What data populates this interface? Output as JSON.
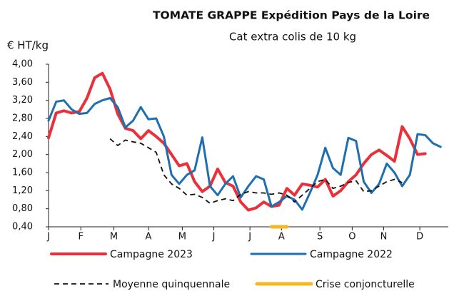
{
  "chart_data": {
    "type": "line",
    "title": "TOMATE  GRAPPE Expédition Pays de la Loire",
    "subtitle": "Cat extra colis de 10 kg",
    "y_label": "€ HT/kg",
    "x": [
      1,
      2,
      3,
      4,
      5,
      6,
      7,
      8,
      9,
      10,
      11,
      12,
      13,
      14,
      15,
      16,
      17,
      18,
      19,
      20,
      21,
      22,
      23,
      24,
      25,
      26,
      27,
      28,
      29,
      30,
      31,
      32,
      33,
      34,
      35,
      36,
      37,
      38,
      39,
      40,
      41,
      42,
      43,
      44,
      45,
      46,
      47,
      48,
      49,
      50,
      51,
      52
    ],
    "xlim": [
      1,
      53
    ],
    "xticks": [
      {
        "value": 1,
        "label": "J"
      },
      {
        "value": 5.2,
        "label": "F"
      },
      {
        "value": 9.5,
        "label": "M"
      },
      {
        "value": 14,
        "label": "A"
      },
      {
        "value": 18.4,
        "label": "M"
      },
      {
        "value": 22.5,
        "label": "J"
      },
      {
        "value": 27.2,
        "label": "J"
      },
      {
        "value": 31.3,
        "label": "A"
      },
      {
        "value": 36.3,
        "label": "S"
      },
      {
        "value": 40.5,
        "label": "O"
      },
      {
        "value": 44.6,
        "label": "N"
      },
      {
        "value": 49.3,
        "label": "D"
      }
    ],
    "ylim": [
      0.4,
      4.0
    ],
    "yticks": [
      {
        "value": 0.4,
        "label": "0,40"
      },
      {
        "value": 0.8,
        "label": "0,80"
      },
      {
        "value": 1.2,
        "label": "1,20"
      },
      {
        "value": 1.6,
        "label": "1,60"
      },
      {
        "value": 2.0,
        "label": "2,00"
      },
      {
        "value": 2.4,
        "label": "2,40"
      },
      {
        "value": 2.8,
        "label": "2,80"
      },
      {
        "value": 3.2,
        "label": "3,20"
      },
      {
        "value": 3.6,
        "label": "3,60"
      },
      {
        "value": 4.0,
        "label": "4,00"
      }
    ],
    "grid": false,
    "series": [
      {
        "name": "Campagne 2023",
        "color": "#e8313a",
        "width": 4,
        "dashed": false,
        "values": [
          2.37,
          2.92,
          2.97,
          2.92,
          2.95,
          3.25,
          3.7,
          3.8,
          3.45,
          2.9,
          2.58,
          2.53,
          2.35,
          2.53,
          2.4,
          2.25,
          2.0,
          1.75,
          1.8,
          1.4,
          1.18,
          1.3,
          1.68,
          1.38,
          1.3,
          0.95,
          0.77,
          0.82,
          0.95,
          0.85,
          0.88,
          1.25,
          1.1,
          1.35,
          1.32,
          1.28,
          1.45,
          1.08,
          1.2,
          1.4,
          1.55,
          1.8,
          2.0,
          2.1,
          1.98,
          1.85,
          2.62,
          2.35,
          2.0,
          2.02,
          null,
          null
        ]
      },
      {
        "name": "Campagne 2022",
        "color": "#1f6fb0",
        "width": 3,
        "dashed": false,
        "values": [
          2.75,
          3.17,
          3.2,
          3.0,
          2.9,
          2.92,
          3.12,
          3.2,
          3.25,
          3.05,
          2.6,
          2.75,
          3.05,
          2.78,
          2.8,
          2.4,
          1.55,
          1.35,
          1.55,
          1.65,
          2.38,
          1.3,
          1.1,
          1.35,
          1.52,
          1.05,
          1.3,
          1.52,
          1.45,
          0.85,
          0.95,
          1.08,
          1.0,
          0.78,
          1.15,
          1.55,
          2.15,
          1.7,
          1.55,
          2.37,
          2.3,
          1.4,
          1.15,
          1.35,
          1.8,
          1.6,
          1.3,
          1.55,
          2.45,
          2.43,
          2.25,
          2.17
        ]
      },
      {
        "name": "Moyenne quinquennale",
        "color": "#111111",
        "width": 1.8,
        "dashed": true,
        "values": [
          null,
          null,
          null,
          null,
          null,
          null,
          null,
          null,
          2.35,
          2.2,
          2.32,
          2.28,
          2.25,
          2.15,
          2.05,
          1.55,
          1.35,
          1.25,
          1.1,
          1.12,
          1.05,
          0.92,
          0.98,
          1.02,
          0.98,
          1.12,
          1.18,
          1.15,
          1.15,
          1.12,
          1.15,
          1.1,
          0.95,
          1.1,
          1.25,
          1.4,
          1.45,
          1.25,
          1.3,
          1.38,
          1.42,
          1.18,
          1.2,
          1.3,
          1.4,
          1.45,
          1.38,
          null,
          null,
          null,
          null,
          null
        ]
      },
      {
        "name": "Crise conjoncturelle",
        "color": "#f5b820",
        "width": 5,
        "dashed": false,
        "values": [
          null,
          null,
          null,
          null,
          null,
          null,
          null,
          null,
          null,
          null,
          null,
          null,
          null,
          null,
          null,
          null,
          null,
          null,
          null,
          null,
          null,
          null,
          null,
          null,
          null,
          null,
          null,
          null,
          null,
          0.4,
          0.4,
          0.4,
          null,
          null,
          null,
          null,
          null,
          null,
          null,
          null,
          null,
          null,
          null,
          null,
          null,
          null,
          null,
          null,
          null,
          null,
          null,
          null
        ]
      }
    ]
  }
}
